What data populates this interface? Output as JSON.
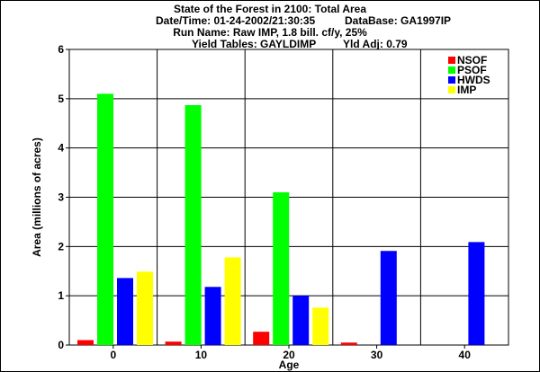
{
  "header": {
    "title": "State of the Forest in 2100: Total Area",
    "datetime": "Date/Time: 01-24-2002/21:30:35",
    "database": "DataBase: GA1997IP",
    "runname": "Run Name: Raw IMP, 1.8 bill. cf/y, 25%",
    "yieldtables": "Yield Tables: GAYLDIMP",
    "yldadj": "Yld Adj: 0.79"
  },
  "chart_data": {
    "type": "bar",
    "categories": [
      "0",
      "10",
      "20",
      "30",
      "40"
    ],
    "xlabel": "Age",
    "ylabel": "Area (millions of acres)",
    "ylim": [
      0,
      6
    ],
    "yticks": [
      0,
      1,
      2,
      3,
      4,
      5,
      6
    ],
    "grid": true,
    "legend_position": "top-right",
    "series": [
      {
        "name": "NSOF",
        "color": "#ff0000",
        "values": [
          0.1,
          0.07,
          0.27,
          0.05,
          0
        ]
      },
      {
        "name": "PSOF",
        "color": "#00ff00",
        "values": [
          5.1,
          4.87,
          3.1,
          0,
          0
        ]
      },
      {
        "name": "HWDS",
        "color": "#0000ff",
        "values": [
          1.36,
          1.18,
          1.0,
          1.91,
          2.09
        ]
      },
      {
        "name": "IMP",
        "color": "#ffff00",
        "values": [
          1.49,
          1.78,
          0.76,
          0,
          0
        ]
      }
    ]
  }
}
